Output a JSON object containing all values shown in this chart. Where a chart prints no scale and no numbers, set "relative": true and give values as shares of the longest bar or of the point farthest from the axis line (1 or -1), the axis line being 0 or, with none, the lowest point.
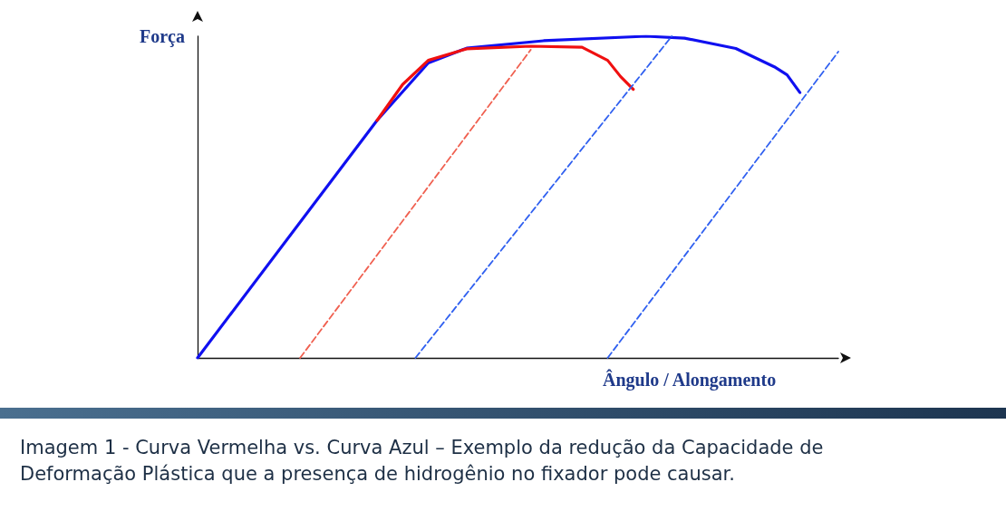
{
  "chart_data": {
    "type": "line",
    "relative": true,
    "xlabel": "Ângulo / Alongamento",
    "ylabel": "Força",
    "grid": false,
    "marker": "none",
    "categories": [
      null,
      null,
      null,
      null,
      null,
      null,
      null,
      null,
      null,
      null,
      null,
      null,
      null,
      null,
      null,
      null,
      null,
      null,
      null,
      null,
      null,
      null,
      null,
      null,
      null,
      null,
      null,
      null,
      null,
      null,
      null,
      null,
      null,
      null,
      null,
      null,
      null,
      null,
      null,
      null,
      null,
      null,
      null,
      null,
      null,
      null,
      null,
      null,
      null,
      null,
      null
    ],
    "series": [
      {
        "color": "#1010f0",
        "line_style": "solid",
        "values": [
          0,
          null,
          null,
          null,
          null,
          null,
          null,
          null,
          null,
          null,
          null,
          null,
          null,
          null,
          0.738,
          null,
          null,
          null,
          0.917,
          null,
          null,
          0.963,
          null,
          null,
          null,
          null,
          null,
          0.986,
          null,
          null,
          null,
          null,
          null,
          null,
          null,
          1,
          null,
          null,
          0.994,
          null,
          null,
          null,
          0.962,
          null,
          null,
          0.905,
          0.88,
          0.825,
          null,
          null,
          null
        ]
      },
      {
        "color": "#f01010",
        "line_style": "solid",
        "values": [
          null,
          null,
          null,
          null,
          null,
          null,
          null,
          null,
          null,
          null,
          null,
          null,
          null,
          null,
          0.738,
          null,
          0.85,
          null,
          0.925,
          null,
          null,
          0.961,
          null,
          null,
          null,
          null,
          0.969,
          null,
          null,
          null,
          0.966,
          null,
          0.925,
          0.875,
          0.835,
          null,
          null,
          null,
          null,
          null,
          null,
          null,
          null,
          null,
          null,
          null,
          null,
          null,
          null,
          null,
          null
        ]
      },
      {
        "color": "#f06050",
        "line_style": "dashed",
        "values": [
          null,
          null,
          null,
          null,
          null,
          null,
          null,
          null,
          0,
          null,
          null,
          null,
          null,
          null,
          null,
          null,
          null,
          null,
          null,
          null,
          null,
          null,
          null,
          null,
          null,
          null,
          0.958,
          null,
          null,
          null,
          null,
          null,
          null,
          null,
          null,
          null,
          null,
          null,
          null,
          null,
          null,
          null,
          null,
          null,
          null,
          null,
          null,
          null,
          null,
          null,
          null
        ]
      },
      {
        "color": "#3060f0",
        "line_style": "dashed",
        "values": [
          null,
          null,
          null,
          null,
          null,
          null,
          null,
          null,
          null,
          null,
          null,
          null,
          null,
          null,
          null,
          null,
          null,
          0,
          null,
          null,
          null,
          null,
          null,
          null,
          null,
          null,
          null,
          null,
          null,
          null,
          null,
          null,
          null,
          null,
          null,
          null,
          null,
          1,
          null,
          null,
          null,
          null,
          null,
          null,
          null,
          null,
          null,
          null,
          null,
          null,
          null
        ]
      },
      {
        "color": "#3060f0",
        "line_style": "dashed",
        "values": [
          null,
          null,
          null,
          null,
          null,
          null,
          null,
          null,
          null,
          null,
          null,
          null,
          null,
          null,
          null,
          null,
          null,
          null,
          null,
          null,
          null,
          null,
          null,
          null,
          null,
          null,
          null,
          null,
          null,
          null,
          null,
          null,
          0,
          null,
          null,
          null,
          null,
          null,
          null,
          null,
          null,
          null,
          null,
          null,
          null,
          null,
          null,
          null,
          null,
          null,
          0.952
        ]
      }
    ],
    "annotations": [
      "Imagem 1 - Curva Vermelha vs. Curva Azul – Exemplo da redução da Capacidade de Deformação Plástica que a presença de hidrogênio no fixador pode causar."
    ]
  }
}
